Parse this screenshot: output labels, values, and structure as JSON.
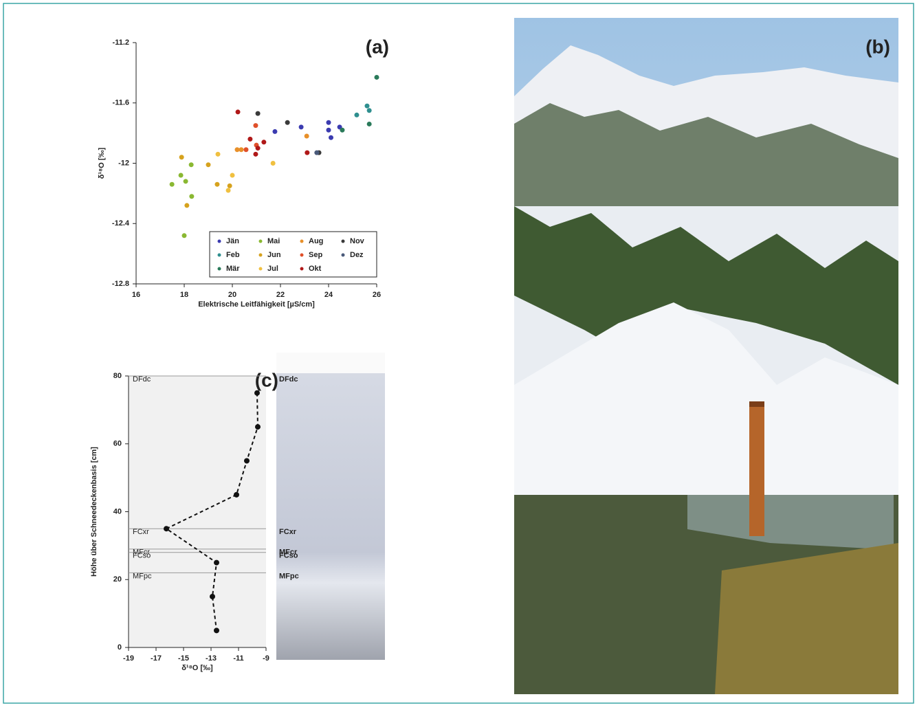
{
  "chart_data": [
    {
      "type": "scatter",
      "title": "(a)",
      "x_label": "Elektrische Leitfähigkeit [µS/cm]",
      "y_label": "δ¹⁸O [‰]",
      "xlim": [
        16,
        26
      ],
      "xticks": [
        16,
        18,
        20,
        22,
        24,
        26
      ],
      "ylim": [
        -12.8,
        -11.2
      ],
      "yticks": [
        -11.2,
        -11.6,
        -12,
        -12.4,
        -12.8
      ],
      "legend": "lower right",
      "series": [
        {
          "name": "Jän",
          "color": "#3b3bb0",
          "x": [
            24.0,
            24.0,
            24.1,
            22.86,
            21.77,
            24.46
          ],
          "values": [
            -11.73,
            -11.78,
            -11.83,
            -11.76,
            -11.79,
            -11.76
          ]
        },
        {
          "name": "Feb",
          "color": "#2f8f8f",
          "x": [
            25.6,
            25.69,
            25.17
          ],
          "values": [
            -11.62,
            -11.65,
            -11.68
          ]
        },
        {
          "name": "Mär",
          "color": "#2a7a5a",
          "x": [
            26.0,
            25.69,
            24.57
          ],
          "values": [
            -11.43,
            -11.74,
            -11.78
          ]
        },
        {
          "name": "Mai",
          "color": "#8ab832",
          "x": [
            17.49,
            17.86,
            18.06,
            18.29,
            18.0,
            18.31
          ],
          "values": [
            -12.14,
            -12.08,
            -12.12,
            -12.01,
            -12.48,
            -12.22
          ]
        },
        {
          "name": "Jun",
          "color": "#d6a21e",
          "x": [
            17.89,
            18.11,
            19.0,
            19.37,
            19.89
          ],
          "values": [
            -11.96,
            -12.28,
            -12.01,
            -12.14,
            -12.15
          ]
        },
        {
          "name": "Jul",
          "color": "#f0c040",
          "x": [
            19.4,
            20.0,
            21.69,
            19.83
          ],
          "values": [
            -11.94,
            -12.08,
            -12.0,
            -12.18
          ]
        },
        {
          "name": "Aug",
          "color": "#e8902a",
          "x": [
            20.2,
            20.37,
            23.09
          ],
          "values": [
            -11.91,
            -11.91,
            -11.82
          ]
        },
        {
          "name": "Sep",
          "color": "#e0502a",
          "x": [
            20.57,
            21.0,
            20.97
          ],
          "values": [
            -11.91,
            -11.88,
            -11.75
          ]
        },
        {
          "name": "Okt",
          "color": "#b01818",
          "x": [
            20.23,
            20.74,
            21.31,
            20.97,
            21.06,
            23.11
          ],
          "values": [
            -11.66,
            -11.84,
            -11.86,
            -11.94,
            -11.9,
            -11.93
          ]
        },
        {
          "name": "Nov",
          "color": "#3a3a3a",
          "x": [
            22.29,
            21.06,
            23.6
          ],
          "values": [
            -11.73,
            -11.67,
            -11.93
          ]
        },
        {
          "name": "Dez",
          "color": "#4a5a7a",
          "x": [
            23.51
          ],
          "values": [
            -11.93
          ]
        }
      ]
    },
    {
      "type": "line",
      "title": "(c)",
      "x_label": "δ¹⁸O [‰]",
      "y_label": "Höhe über Schneedeckenbasis [cm]",
      "xlim": [
        -19,
        -9
      ],
      "xticks": [
        -19,
        -17,
        -15,
        -13,
        -11,
        -9
      ],
      "ylim": [
        0,
        80
      ],
      "yticks": [
        0,
        20,
        40,
        60,
        80
      ],
      "series": [
        {
          "color": "#111111",
          "x": [
            -9.65,
            -9.6,
            -10.4,
            -11.15,
            -16.25,
            -12.6,
            -12.9,
            -12.6
          ],
          "values": [
            75,
            65,
            55,
            45,
            35,
            25,
            15,
            5
          ]
        }
      ],
      "layers": [
        {
          "label": "DFdc",
          "height": 80
        },
        {
          "label": "FCxr",
          "height": 35
        },
        {
          "label": "MFcr",
          "height": 29
        },
        {
          "label": "FCso",
          "height": 28
        },
        {
          "label": "MFpc",
          "height": 22
        }
      ]
    }
  ],
  "photo": {
    "label": "(b)"
  }
}
